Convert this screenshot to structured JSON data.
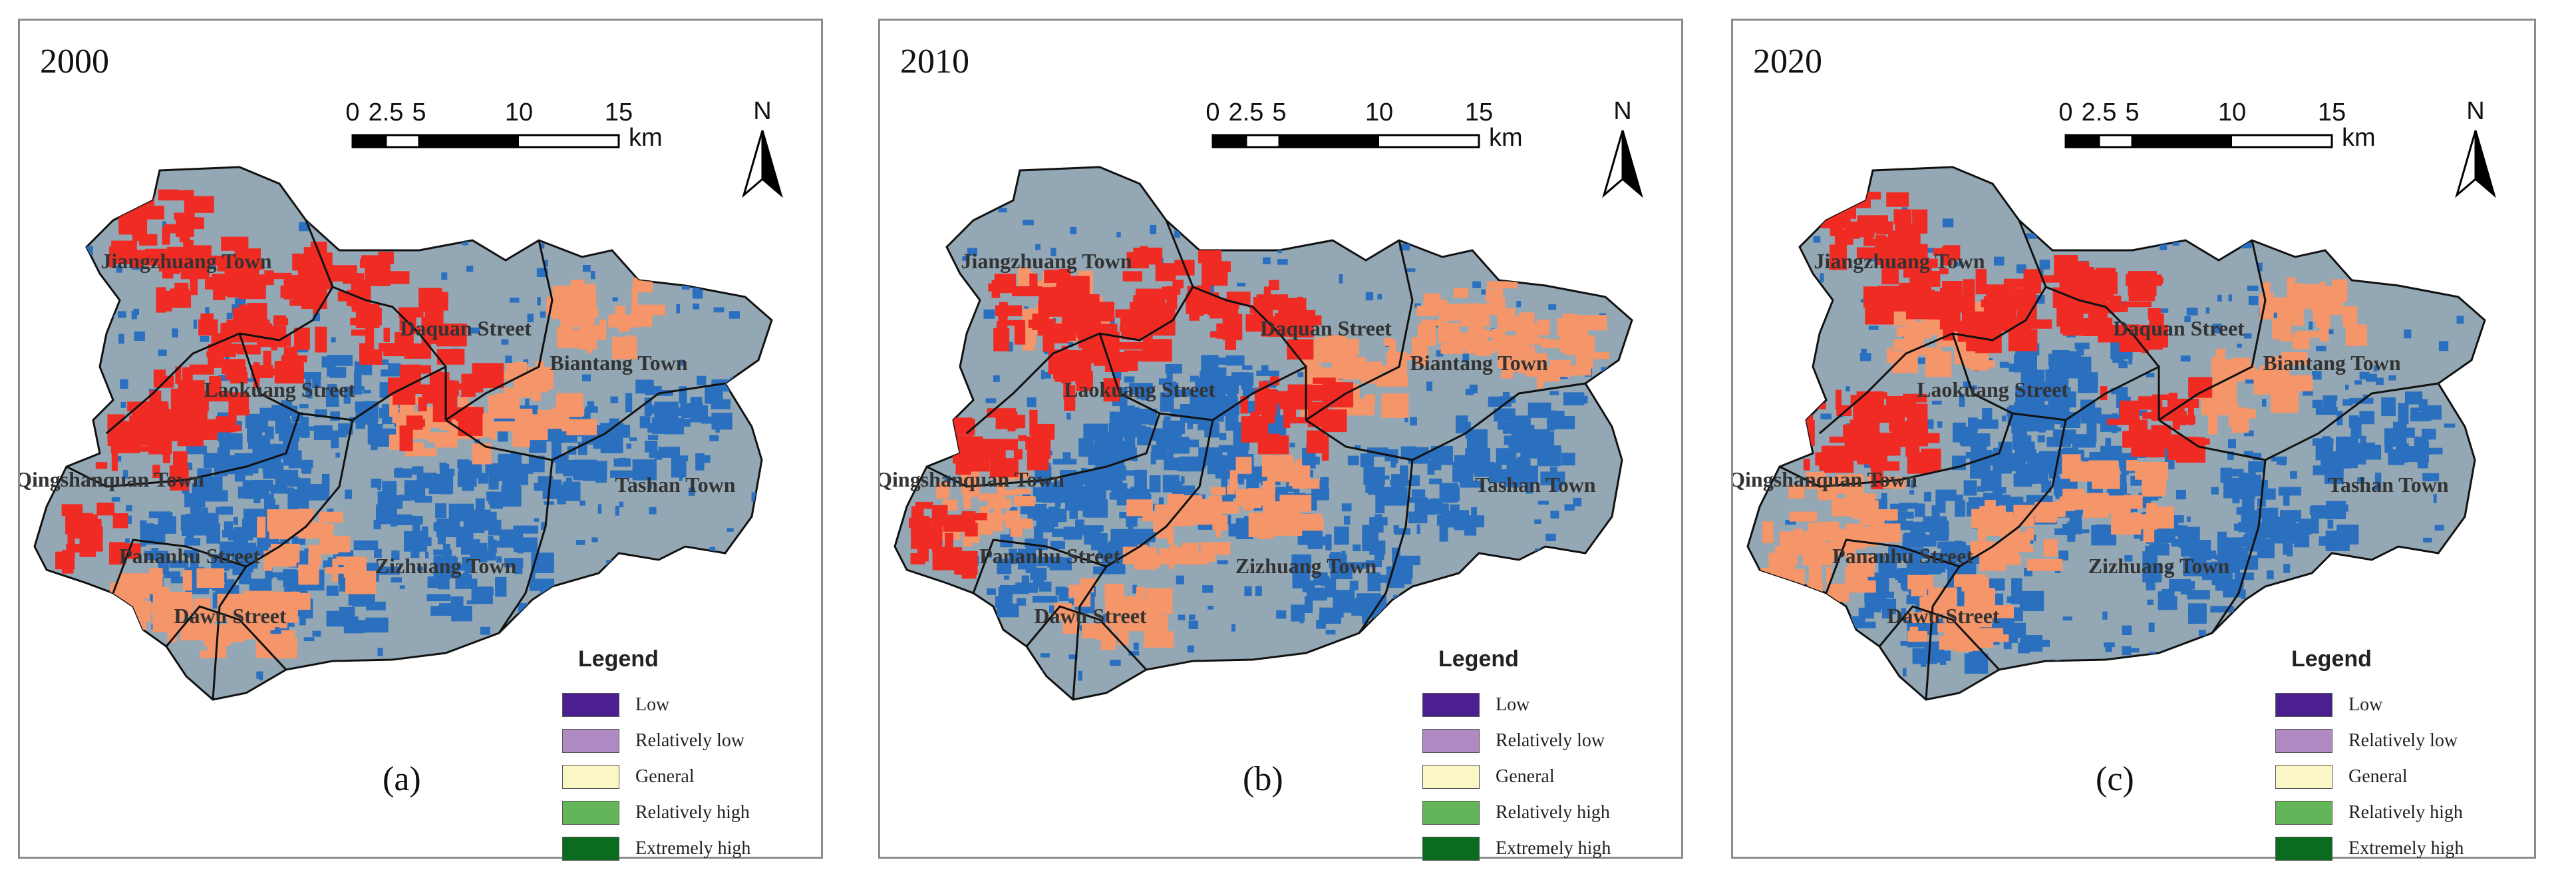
{
  "panels": [
    {
      "year": "2000",
      "label": "(a)"
    },
    {
      "year": "2010",
      "label": "(b)"
    },
    {
      "year": "2020",
      "label": "(c)"
    }
  ],
  "scalebar": {
    "ticks": [
      "0",
      "2.5",
      "5",
      "10",
      "15"
    ],
    "unit": "km"
  },
  "north_label": "N",
  "place_names": {
    "jiangzhuang": "Jiangzhuang Town",
    "daquan": "Daquan Street",
    "biantang": "Biantang Town",
    "laokuang": "Laokuang Street",
    "qingshanquan": "Qingshanquan Town",
    "tashan": "Tashan Town",
    "pananhu": "Pananhu Street",
    "zizhuang": "Zizhuang Town",
    "dawu": "Dawu Street"
  },
  "legend": {
    "title": "Legend",
    "items": [
      {
        "label": "Low",
        "color": "#4b1f8f"
      },
      {
        "label": "Relatively low",
        "color": "#b08ac3"
      },
      {
        "label": "General",
        "color": "#fbf6c6"
      },
      {
        "label": "Relatively high",
        "color": "#63b55a"
      },
      {
        "label": "Extremely high",
        "color": "#0b6b1e"
      }
    ]
  },
  "map_colors": {
    "base": "#93a8b4",
    "blue": "#2b6fbf",
    "red": "#ef2b24",
    "orange": "#f4956a",
    "outline": "#111111"
  }
}
